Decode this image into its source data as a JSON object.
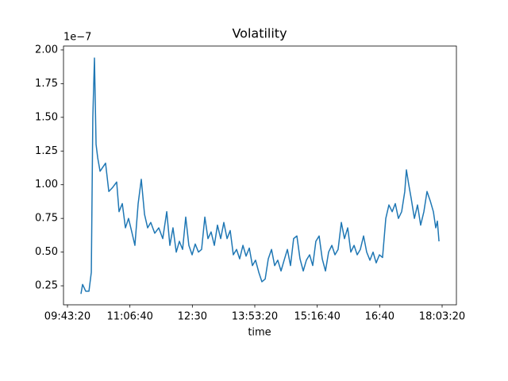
{
  "chart_data": {
    "type": "line",
    "title": "Volatility",
    "xlabel": "time",
    "y_offset_text": "1e−7",
    "color": "#1f77b4",
    "x": [
      36080,
      36210,
      36460,
      36720,
      36910,
      37030,
      37160,
      37290,
      37420,
      37610,
      38050,
      38310,
      38620,
      38940,
      39130,
      39390,
      39640,
      39890,
      40150,
      40400,
      40660,
      40910,
      41170,
      41420,
      41670,
      41990,
      42310,
      42630,
      42950,
      43200,
      43450,
      43710,
      43960,
      44220,
      44470,
      44720,
      44980,
      45230,
      45490,
      45740,
      46000,
      46250,
      46500,
      46760,
      47010,
      47270,
      47520,
      47780,
      48030,
      48280,
      48540,
      48790,
      49050,
      49300,
      49560,
      49810,
      50060,
      50320,
      50570,
      50830,
      51080,
      51340,
      51590,
      51840,
      52100,
      52350,
      52610,
      52860,
      53110,
      53370,
      53620,
      53880,
      54130,
      54390,
      54640,
      54890,
      55150,
      55400,
      55660,
      55910,
      56170,
      56420,
      56670,
      56930,
      57180,
      57440,
      57690,
      57950,
      58200,
      58450,
      58710,
      58960,
      59220,
      59470,
      59720,
      59980,
      60230,
      60490,
      60740,
      61000,
      61250,
      61500,
      61760,
      62010,
      62140,
      62330,
      62520,
      62780,
      63030,
      63280,
      63540,
      63790,
      64050,
      64300,
      64490,
      64620,
      64750
    ],
    "values": [
      0.19,
      0.26,
      0.21,
      0.21,
      0.35,
      1.5,
      1.94,
      1.3,
      1.2,
      1.1,
      1.16,
      0.95,
      0.98,
      1.02,
      0.8,
      0.86,
      0.68,
      0.75,
      0.65,
      0.55,
      0.86,
      1.04,
      0.78,
      0.68,
      0.72,
      0.64,
      0.68,
      0.6,
      0.8,
      0.55,
      0.68,
      0.5,
      0.58,
      0.52,
      0.76,
      0.55,
      0.48,
      0.56,
      0.5,
      0.52,
      0.76,
      0.6,
      0.65,
      0.55,
      0.7,
      0.6,
      0.72,
      0.6,
      0.66,
      0.48,
      0.52,
      0.45,
      0.55,
      0.47,
      0.53,
      0.4,
      0.44,
      0.35,
      0.28,
      0.3,
      0.45,
      0.52,
      0.4,
      0.44,
      0.36,
      0.44,
      0.52,
      0.4,
      0.6,
      0.62,
      0.45,
      0.36,
      0.44,
      0.48,
      0.4,
      0.58,
      0.62,
      0.45,
      0.36,
      0.5,
      0.55,
      0.48,
      0.52,
      0.72,
      0.6,
      0.68,
      0.5,
      0.55,
      0.48,
      0.52,
      0.62,
      0.5,
      0.44,
      0.5,
      0.42,
      0.48,
      0.46,
      0.75,
      0.85,
      0.8,
      0.86,
      0.75,
      0.8,
      0.95,
      1.11,
      1.0,
      0.9,
      0.75,
      0.85,
      0.7,
      0.8,
      0.95,
      0.88,
      0.8,
      0.68,
      0.73,
      0.58
    ],
    "xlim": [
      34682,
      66144
    ],
    "ylim": [
      0.109,
      2.029
    ],
    "xticks": [
      {
        "value": 35000,
        "label": "09:43:20"
      },
      {
        "value": 40000,
        "label": "11:06:40"
      },
      {
        "value": 45000,
        "label": "12:30"
      },
      {
        "value": 50000,
        "label": "13:53:20"
      },
      {
        "value": 55000,
        "label": "15:16:40"
      },
      {
        "value": 60000,
        "label": "16:40"
      },
      {
        "value": 65000,
        "label": "18:03:20"
      }
    ],
    "yticks": [
      {
        "value": 0.25,
        "label": "0.25"
      },
      {
        "value": 0.5,
        "label": "0.50"
      },
      {
        "value": 0.75,
        "label": "0.75"
      },
      {
        "value": 1,
        "label": "1.00"
      },
      {
        "value": 1.25,
        "label": "1.25"
      },
      {
        "value": 1.5,
        "label": "1.50"
      },
      {
        "value": 1.75,
        "label": "1.75"
      },
      {
        "value": 2,
        "label": "2.00"
      }
    ]
  }
}
